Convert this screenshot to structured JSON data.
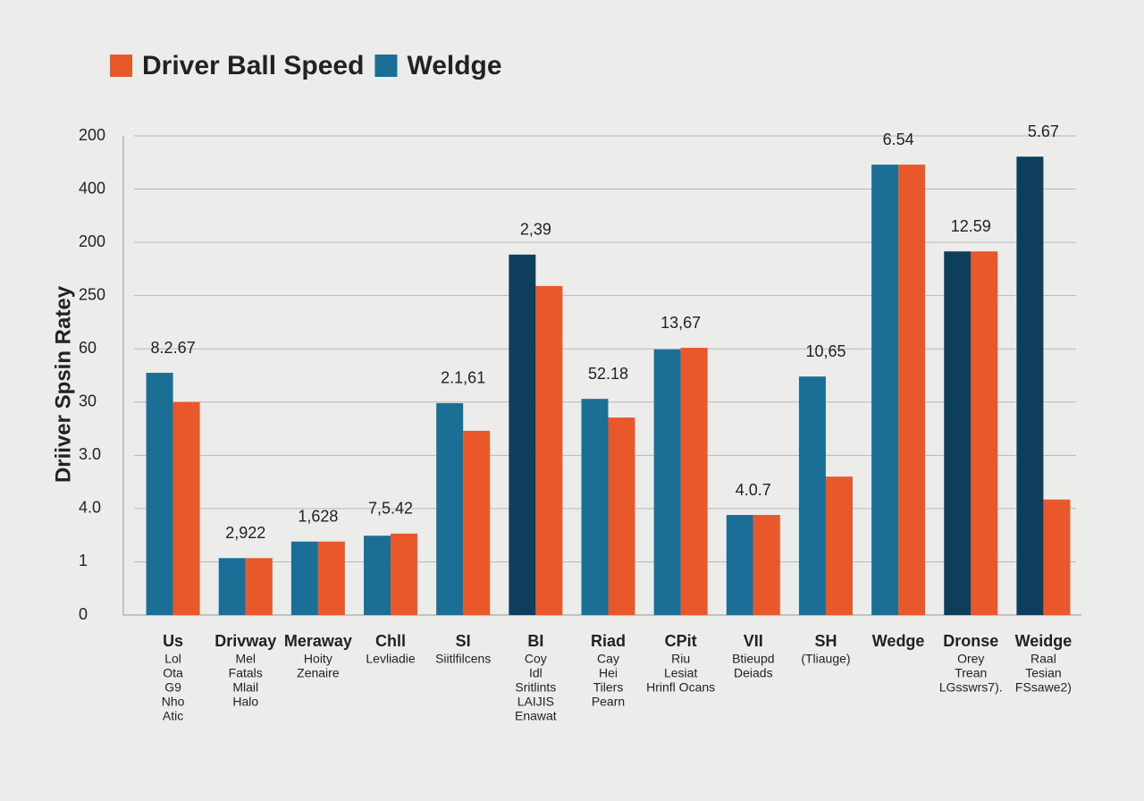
{
  "chart_data": {
    "type": "bar",
    "y_label": "Driiver Spsin Ratey",
    "categories": [
      "Us",
      "Drivway",
      "Meraway",
      "Chll",
      "SI",
      "BI",
      "Riad",
      "CPit",
      "VII",
      "SH",
      "Wedge",
      "Dronse",
      "Weidge"
    ],
    "sublabels": [
      [
        "Lol",
        "Ota",
        "G9",
        "Nho",
        "Atic"
      ],
      [
        "Mel",
        "Fatals",
        "Mlail",
        "Halo"
      ],
      [
        "Hoity",
        "Zenaire"
      ],
      [
        "Levliadie"
      ],
      [
        "Siitlfilcens"
      ],
      [
        "Coy",
        "Idl",
        "Sritlints",
        "LAIJIS",
        "Enawat"
      ],
      [
        "Cay",
        "Hei",
        "Tilers",
        "Pearn"
      ],
      [
        "Riu",
        "Lesiat",
        "Hrinfl Ocans"
      ],
      [
        "Btieupd",
        "Deiads"
      ],
      [
        "(Tliauge)"
      ],
      [],
      [
        "Orey",
        "Trean",
        "LGsswrs7)."
      ],
      [
        "Raal",
        "Tesian",
        "FSsawe2)"
      ]
    ],
    "annotations": [
      "8.2.67",
      "2,922",
      "1,628",
      "7,5.42",
      "2.1,61",
      "2,39",
      "52.18",
      "13,67",
      "4.0.7",
      "10,65",
      "6.54",
      "12.59",
      "5.67"
    ],
    "series": [
      {
        "name": "Driver Ball Speed",
        "color": "#e8582b",
        "values": [
          4.0,
          1.07,
          1.38,
          1.53,
          3.46,
          6.18,
          3.71,
          5.02,
          1.88,
          2.6,
          8.46,
          6.83,
          2.17
        ]
      },
      {
        "name": "Weldge",
        "color": "#1b6f97",
        "dark_color": "#0f3d5c",
        "dark": [
          false,
          false,
          false,
          false,
          false,
          true,
          false,
          false,
          false,
          false,
          false,
          true,
          true
        ],
        "values": [
          4.55,
          1.07,
          1.38,
          1.49,
          3.98,
          6.77,
          4.06,
          4.99,
          1.88,
          4.48,
          8.46,
          6.83,
          8.61
        ]
      }
    ],
    "ylim": [
      0,
      9
    ],
    "yticks": [
      0,
      1,
      {
        "value": 2,
        "label": "4.0"
      },
      {
        "value": 3,
        "label": "3.0"
      },
      {
        "value": 4,
        "label": "30"
      },
      {
        "value": 5,
        "label": "60"
      },
      {
        "value": 6,
        "label": "250"
      },
      {
        "value": 7,
        "label": "200"
      },
      {
        "value": 8,
        "label": "400"
      },
      {
        "value": 9,
        "label": "200"
      }
    ],
    "grid": true
  }
}
